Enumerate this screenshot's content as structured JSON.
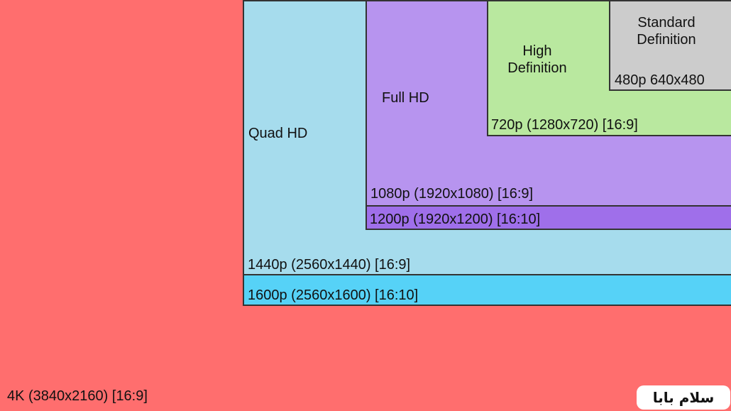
{
  "resolutions": {
    "uhd_4k": {
      "label": "4K (3840x2160) [16:9]"
    },
    "qhd_1600": {
      "label": "1600p (2560x1600) [16:10]"
    },
    "qhd_1440": {
      "label": "1440p (2560x1440) [16:9]",
      "name": "Quad HD"
    },
    "fhd_1200": {
      "label": "1200p (1920x1200) [16:10]"
    },
    "fhd_1080": {
      "label": "1080p (1920x1080) [16:9]",
      "name": "Full HD"
    },
    "hd_720": {
      "label": "720p (1280x720) [16:9]",
      "name_line1": "High",
      "name_line2": "Definition"
    },
    "sd_480": {
      "label": "480p 640x480",
      "name_line1": "Standard",
      "name_line2": "Definition"
    }
  },
  "watermark": "سلام بابا",
  "colors": {
    "uhd_4k": "#ff6e6e",
    "qhd_1600": "#56d2f7",
    "qhd_1440": "#a6dced",
    "fhd_1200": "#9f6fea",
    "fhd_1080": "#b794ef",
    "hd_720": "#b9e89f",
    "sd_480": "#cccccc"
  }
}
